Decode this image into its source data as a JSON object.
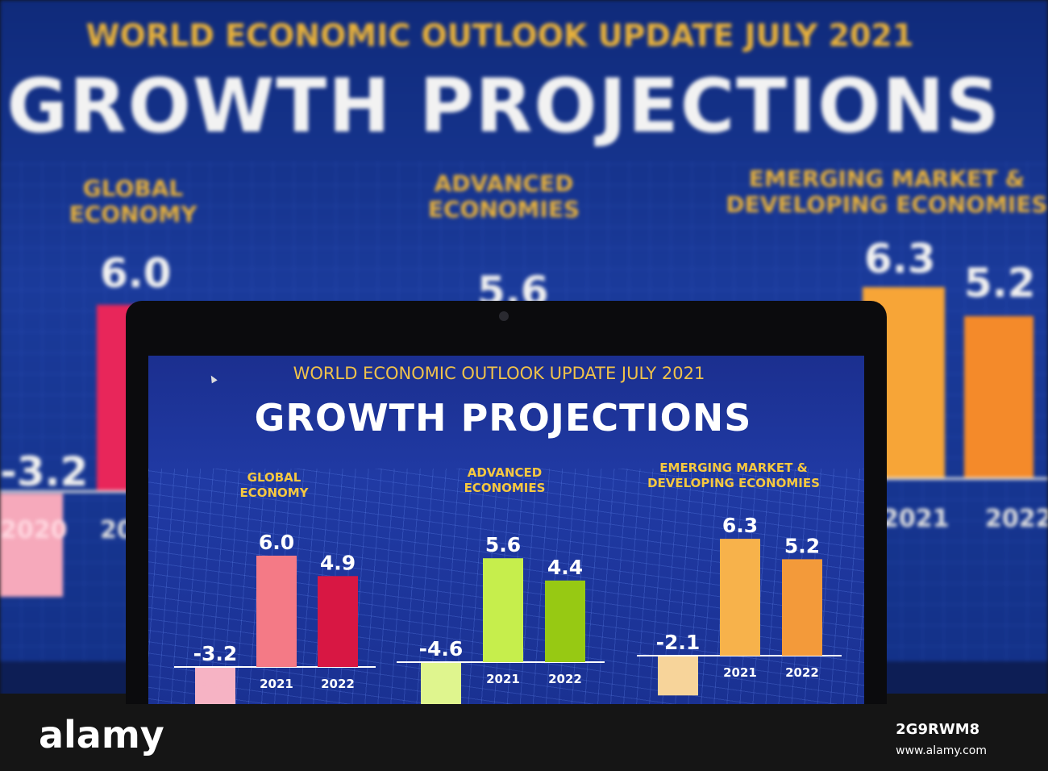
{
  "background_screen": {
    "supertitle": "WORLD ECONOMIC OUTLOOK UPDATE JULY 2021",
    "title": "GROWTH PROJECTIONS",
    "groups": [
      {
        "label_line1": "GLOBAL",
        "label_line2": "ECONOMY",
        "values": [
          "-3.2",
          "6.0"
        ],
        "years": [
          "2020",
          "20"
        ]
      },
      {
        "label_line1": "ADVANCED",
        "label_line2": "ECONOMIES",
        "values": [
          "5.6"
        ]
      },
      {
        "label_line1": "EMERGING MARKET &",
        "label_line2": "DEVELOPING ECONOMIES",
        "values": [
          "6.3",
          "5.2"
        ],
        "years": [
          "2021",
          "2022"
        ]
      }
    ]
  },
  "laptop_screen": {
    "supertitle": "WORLD ECONOMIC OUTLOOK UPDATE JULY 2021",
    "title": "GROWTH PROJECTIONS"
  },
  "chart_data": {
    "type": "bar",
    "categories": [
      "2020",
      "2021",
      "2022"
    ],
    "groups": [
      {
        "name": "GLOBAL ECONOMY",
        "label_line1": "GLOBAL",
        "label_line2": "ECONOMY",
        "values": [
          -3.2,
          6.0,
          4.9
        ],
        "labels": [
          "-3.2",
          "6.0",
          "4.9"
        ],
        "colors": [
          "#f6b3c4",
          "#f47a86",
          "#d81743"
        ]
      },
      {
        "name": "ADVANCED ECONOMIES",
        "label_line1": "ADVANCED",
        "label_line2": "ECONOMIES",
        "values": [
          -4.6,
          5.6,
          4.4
        ],
        "labels": [
          "-4.6",
          "5.6",
          "4.4"
        ],
        "colors": [
          "#dff58e",
          "#c6ee4c",
          "#97c913"
        ]
      },
      {
        "name": "EMERGING MARKET & DEVELOPING ECONOMIES",
        "label_line1": "EMERGING MARKET &",
        "label_line2": "DEVELOPING ECONOMIES",
        "values": [
          -2.1,
          6.3,
          5.2
        ],
        "labels": [
          "-2.1",
          "6.3",
          "5.2"
        ],
        "colors": [
          "#f7d49a",
          "#f7b24b",
          "#f39a3a"
        ]
      }
    ]
  },
  "watermark": {
    "brand": "alamy",
    "image_id": "2G9RWM8",
    "url": "www.alamy.com"
  }
}
